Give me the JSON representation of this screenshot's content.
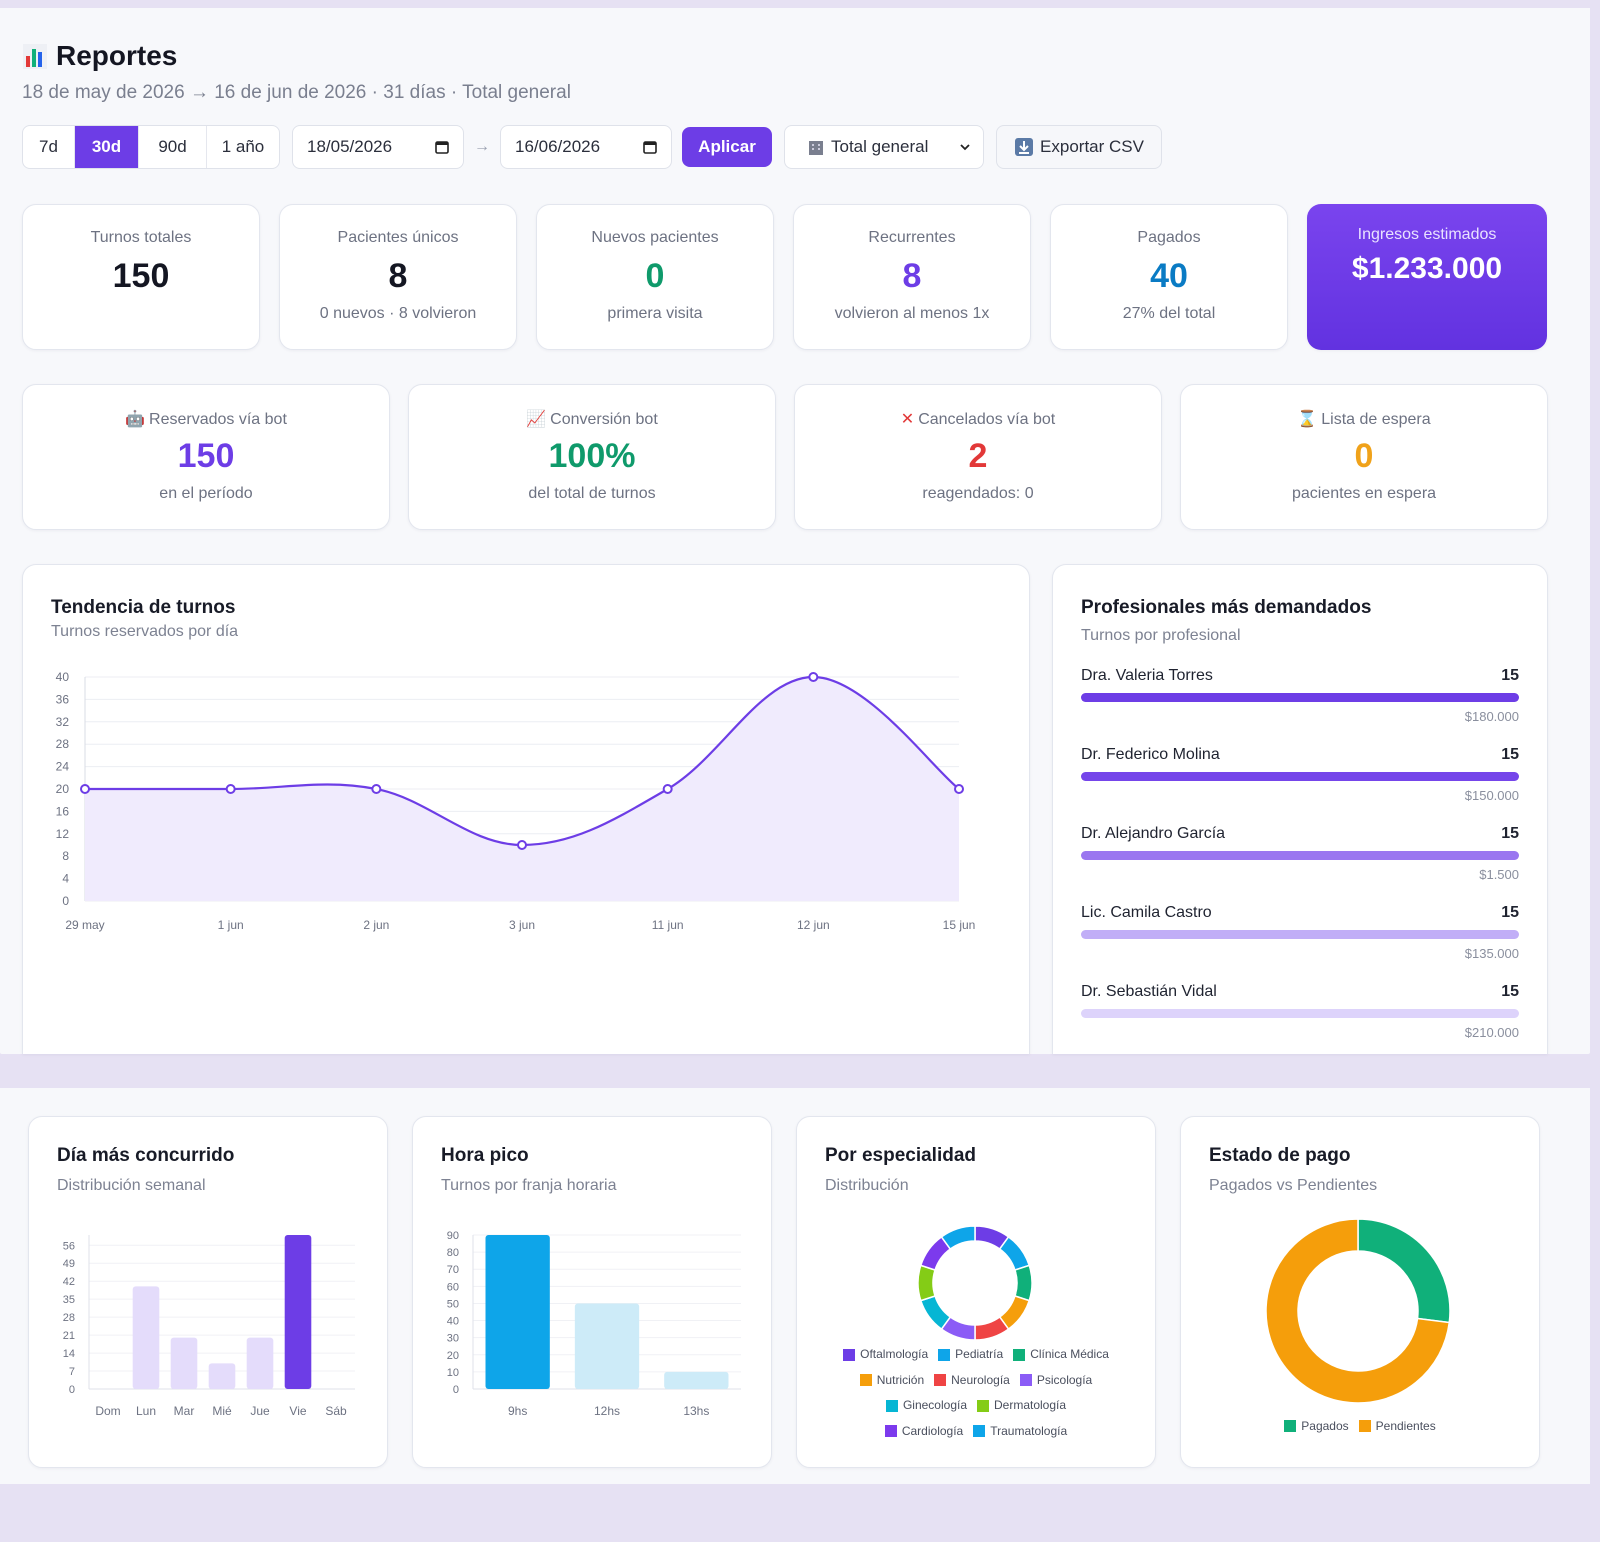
{
  "header": {
    "icon": "bar-chart-icon",
    "title": "Reportes",
    "subtitle": "18 de may de 2026 → 16 de jun de 2026 · 31 días · Total general"
  },
  "toolbar": {
    "ranges": [
      "7d",
      "30d",
      "90d",
      "1 año"
    ],
    "active_range": "30d",
    "date_from": "18/05/2026",
    "date_to": "16/06/2026",
    "arrow": "→",
    "apply_label": "Aplicar",
    "scope_select": "Total general",
    "export_label": "Exportar CSV"
  },
  "stats": [
    {
      "label": "Turnos totales",
      "value": "150",
      "sub": ""
    },
    {
      "label": "Pacientes únicos",
      "value": "8",
      "sub": "0 nuevos · 8 volvieron"
    },
    {
      "label": "Nuevos pacientes",
      "value": "0",
      "sub": "primera visita"
    },
    {
      "label": "Recurrentes",
      "value": "8",
      "sub": "volvieron al menos 1x"
    },
    {
      "label": "Pagados",
      "value": "40",
      "sub": "27% del total"
    },
    {
      "label": "Ingresos estimados",
      "value": "$1.233.000",
      "sub": ""
    }
  ],
  "bot_stats": [
    {
      "icon": "robot-icon",
      "label": "Reservados vía bot",
      "value": "150",
      "sub": "en el período"
    },
    {
      "icon": "chart-up-icon",
      "label": "Conversión bot",
      "value": "100%",
      "sub": "del total de turnos"
    },
    {
      "icon": "cross-icon",
      "label": "Cancelados vía bot",
      "value": "2",
      "sub": "reagendados: 0"
    },
    {
      "icon": "hourglass-icon",
      "label": "Lista de espera",
      "value": "0",
      "sub": "pacientes en espera"
    }
  ],
  "trend": {
    "title": "Tendencia de turnos",
    "subtitle": "Turnos reservados por día"
  },
  "professionals": {
    "title": "Profesionales más demandados",
    "subtitle": "Turnos por profesional",
    "items": [
      {
        "name": "Dra. Valeria Torres",
        "count": "15",
        "amount": "$180.000",
        "color": "#6d3de6"
      },
      {
        "name": "Dr. Federico Molina",
        "count": "15",
        "amount": "$150.000",
        "color": "#7545ea"
      },
      {
        "name": "Dr. Alejandro García",
        "count": "15",
        "amount": "$1.500",
        "color": "#9a76f0"
      },
      {
        "name": "Lic. Camila Castro",
        "count": "15",
        "amount": "$135.000",
        "color": "#c1aef7"
      },
      {
        "name": "Dr. Sebastián Vidal",
        "count": "15",
        "amount": "$210.000",
        "color": "#ddd3fb"
      }
    ]
  },
  "weekday": {
    "title": "Día más concurrido",
    "subtitle": "Distribución semanal"
  },
  "peak": {
    "title": "Hora pico",
    "subtitle": "Turnos por franja horaria"
  },
  "specialty": {
    "title": "Por especialidad",
    "subtitle": "Distribución"
  },
  "payment": {
    "title": "Estado de pago",
    "subtitle": "Pagados vs Pendientes"
  },
  "chart_data": [
    {
      "type": "area",
      "categories": [
        "29 may",
        "1 jun",
        "2 jun",
        "3 jun",
        "11 jun",
        "12 jun",
        "15 jun"
      ],
      "values": [
        20,
        20,
        20,
        10,
        20,
        40,
        20
      ],
      "ylim": [
        0,
        40
      ],
      "yticks": [
        0,
        4,
        8,
        12,
        16,
        20,
        24,
        28,
        32,
        36,
        40
      ],
      "color": "#6d3de6"
    },
    {
      "type": "bar",
      "categories": [
        "Dom",
        "Lun",
        "Mar",
        "Mié",
        "Jue",
        "Vie",
        "Sáb"
      ],
      "values": [
        0,
        40,
        20,
        10,
        20,
        60,
        0
      ],
      "ylim": [
        0,
        60
      ],
      "yticks": [
        0,
        7,
        14,
        21,
        28,
        35,
        42,
        49,
        56
      ],
      "highlight_color": "#6d3de6",
      "base_color": "#e4dcfb"
    },
    {
      "type": "bar",
      "categories": [
        "9hs",
        "12hs",
        "13hs"
      ],
      "values": [
        90,
        50,
        10
      ],
      "ylim": [
        0,
        90
      ],
      "yticks": [
        0,
        10,
        20,
        30,
        40,
        50,
        60,
        70,
        80,
        90
      ],
      "highlight_color": "#0ea5e9",
      "base_color": "#cdebf8"
    },
    {
      "type": "pie",
      "categories": [
        "Oftalmología",
        "Pediatría",
        "Clínica Médica",
        "Nutrición",
        "Neurología",
        "Psicología",
        "Ginecología",
        "Dermatología",
        "Cardiología",
        "Traumatología"
      ],
      "values": [
        10,
        10,
        10,
        10,
        10,
        10,
        10,
        10,
        10,
        10
      ],
      "colors": [
        "#6d3de6",
        "#0ea5e9",
        "#10b07a",
        "#f59e0b",
        "#ef4444",
        "#8b5cf6",
        "#06b6d4",
        "#84cc16",
        "#7c3aed",
        "#0ea5e9"
      ]
    },
    {
      "type": "pie",
      "categories": [
        "Pagados",
        "Pendientes"
      ],
      "values": [
        27,
        73
      ],
      "colors": [
        "#10b07a",
        "#f59e0b"
      ]
    }
  ]
}
